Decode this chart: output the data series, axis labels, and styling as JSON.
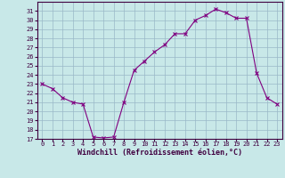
{
  "x": [
    0,
    1,
    2,
    3,
    4,
    5,
    6,
    7,
    8,
    9,
    10,
    11,
    12,
    13,
    14,
    15,
    16,
    17,
    18,
    19,
    20,
    21,
    22,
    23
  ],
  "y": [
    23,
    22.5,
    21.5,
    21,
    20.8,
    17.2,
    17.1,
    17.2,
    21.0,
    24.5,
    25.5,
    26.5,
    27.3,
    28.5,
    28.5,
    30.0,
    30.5,
    31.2,
    30.8,
    30.2,
    30.2,
    24.2,
    21.5,
    20.8
  ],
  "xlim": [
    -0.5,
    23.5
  ],
  "ylim": [
    17,
    32
  ],
  "yticks": [
    17,
    18,
    19,
    20,
    21,
    22,
    23,
    24,
    25,
    26,
    27,
    28,
    29,
    30,
    31
  ],
  "xticks": [
    0,
    1,
    2,
    3,
    4,
    5,
    6,
    7,
    8,
    9,
    10,
    11,
    12,
    13,
    14,
    15,
    16,
    17,
    18,
    19,
    20,
    21,
    22,
    23
  ],
  "xlabel": "Windchill (Refroidissement éolien,°C)",
  "line_color": "#800080",
  "marker": "x",
  "bg_color": "#c8e8e8",
  "grid_color": "#9ab8c8",
  "axis_color": "#400040",
  "tick_fontsize": 5.0,
  "label_fontsize": 6.0
}
